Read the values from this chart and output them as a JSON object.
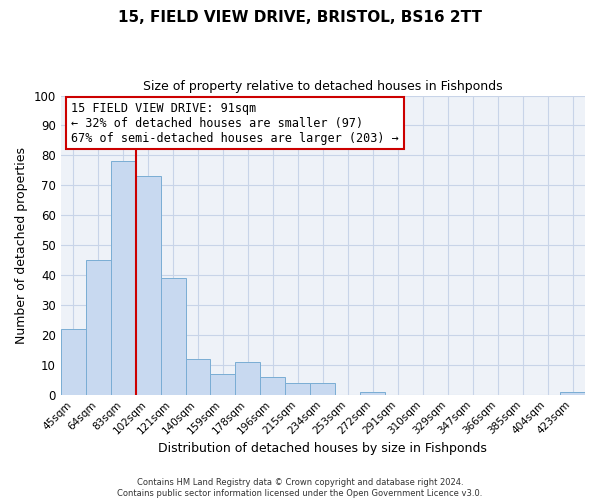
{
  "title": "15, FIELD VIEW DRIVE, BRISTOL, BS16 2TT",
  "subtitle": "Size of property relative to detached houses in Fishponds",
  "xlabel": "Distribution of detached houses by size in Fishponds",
  "ylabel": "Number of detached properties",
  "bar_labels": [
    "45sqm",
    "64sqm",
    "83sqm",
    "102sqm",
    "121sqm",
    "140sqm",
    "159sqm",
    "178sqm",
    "196sqm",
    "215sqm",
    "234sqm",
    "253sqm",
    "272sqm",
    "291sqm",
    "310sqm",
    "329sqm",
    "347sqm",
    "366sqm",
    "385sqm",
    "404sqm",
    "423sqm"
  ],
  "bar_values": [
    22,
    45,
    78,
    73,
    39,
    12,
    7,
    11,
    6,
    4,
    4,
    0,
    1,
    0,
    0,
    0,
    0,
    0,
    0,
    0,
    1
  ],
  "bar_color": "#c8d9f0",
  "bar_edge_color": "#7aadd4",
  "vline_color": "#cc0000",
  "vline_pos": 2.42,
  "ylim": [
    0,
    100
  ],
  "yticks": [
    0,
    10,
    20,
    30,
    40,
    50,
    60,
    70,
    80,
    90,
    100
  ],
  "grid_color": "#c8d4e8",
  "bg_color": "#eef2f8",
  "annotation_title": "15 FIELD VIEW DRIVE: 91sqm",
  "annotation_line1": "← 32% of detached houses are smaller (97)",
  "annotation_line2": "67% of semi-detached houses are larger (203) →",
  "annotation_box_color": "#cc0000",
  "footer1": "Contains HM Land Registry data © Crown copyright and database right 2024.",
  "footer2": "Contains public sector information licensed under the Open Government Licence v3.0."
}
